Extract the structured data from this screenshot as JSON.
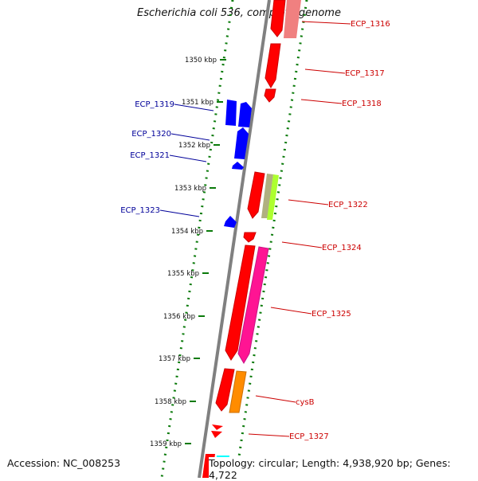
{
  "title": "Escherichia coli 536, complete genome",
  "footer": {
    "accession": "Accession: NC_008253",
    "summary": "Topology: circular; Length: 4,938,920 bp; Genes: 4,722"
  },
  "ticks": [
    "1350 kbp",
    "1351 kbp",
    "1352 kbp",
    "1353 kbp",
    "1354 kbp",
    "1355 kbp",
    "1356 kbp",
    "1357 kbp",
    "1358 kbp",
    "1359 kbp"
  ],
  "labels": {
    "reverse": [
      "ECP_1319",
      "ECP_1320",
      "ECP_1321",
      "ECP_1323"
    ],
    "forward": [
      "ECP_1316",
      "ECP_1317",
      "ECP_1318",
      "ECP_1322",
      "ECP_1324",
      "ECP_1325",
      "cysB",
      "ECP_1327"
    ]
  },
  "colors": {
    "forward_label": "#cc0000",
    "reverse_label": "#000099",
    "backbone": "#808080",
    "tick": "#0a7a0a",
    "gene_red": "#ff0000",
    "gene_blue": "#0000ff",
    "gene_pink": "#ff1493",
    "gene_green": "#adff2f",
    "gene_orange": "#ff8c00",
    "gene_cyan": "#00ffff"
  }
}
